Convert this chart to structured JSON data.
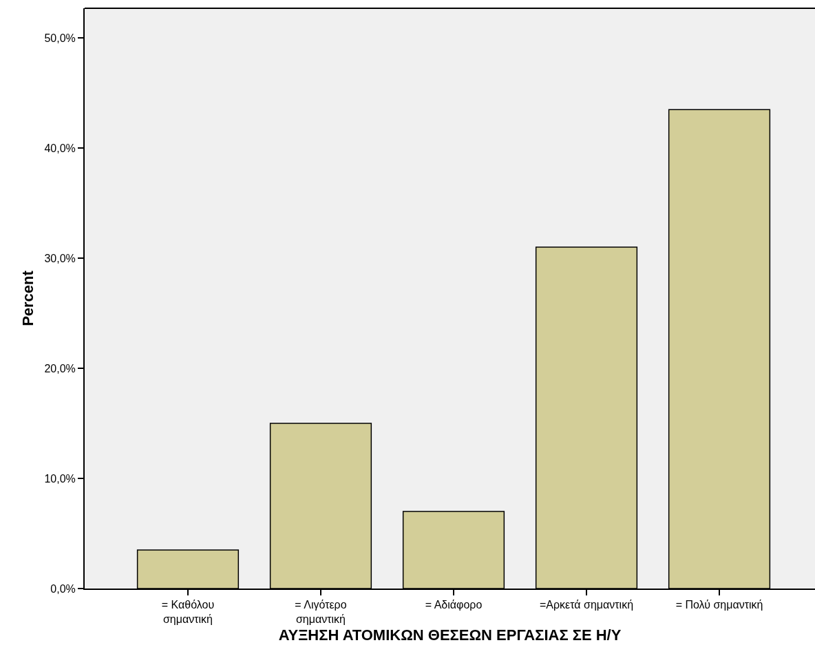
{
  "chart_data": {
    "type": "bar",
    "xlabel": "ΑΥΞΗΣΗ ΑΤΟΜΙΚΩΝ ΘΕΣΕΩΝ ΕΡΓΑΣΙΑΣ ΣΕ Η/Υ",
    "ylabel": "Percent",
    "categories": [
      "= Καθόλου σημαντική",
      "= Λιγότερο σημαντική",
      "= Αδιάφορο",
      "=Αρκετά σημαντική",
      "= Πολύ σημαντική"
    ],
    "values": [
      3.5,
      15.0,
      7.0,
      31.0,
      43.5
    ],
    "color": "#d3ce98",
    "ylim": [
      0,
      52.7
    ],
    "yticks": [
      {
        "value": 0,
        "label": "0,0%"
      },
      {
        "value": 10,
        "label": "10,0%"
      },
      {
        "value": 20,
        "label": "20,0%"
      },
      {
        "value": 30,
        "label": "30,0%"
      },
      {
        "value": 40,
        "label": "40,0%"
      },
      {
        "value": 50,
        "label": "50,0%"
      }
    ],
    "grid": false
  }
}
